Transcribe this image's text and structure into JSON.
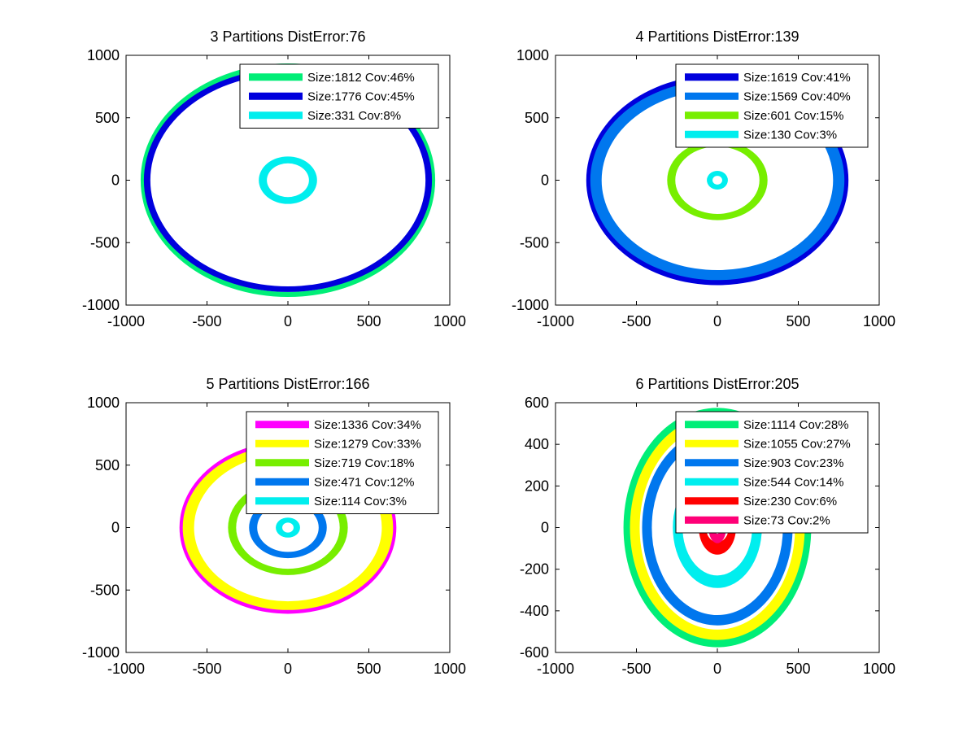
{
  "chart_data": [
    {
      "type": "scatter",
      "title": "3 Partitions DistError:76",
      "xlim": [
        -1000,
        1000
      ],
      "ylim": [
        -1000,
        1000
      ],
      "xticks": [
        "-1000",
        "-500",
        "0",
        "500",
        "1000"
      ],
      "yticks": [
        "1000",
        "500",
        "0",
        "-500",
        "-1000"
      ],
      "legend_location": "top-right",
      "series": [
        {
          "name": "Size:1812 Cov:46%",
          "color": "#00ee77",
          "shape": "ring",
          "rx_outer": 910,
          "rx_inner": 880,
          "ry_outer": 935,
          "ry_inner": 895
        },
        {
          "name": "Size:1776 Cov:45%",
          "color": "#0000dd",
          "shape": "ring",
          "rx_outer": 890,
          "rx_inner": 850,
          "ry_outer": 895,
          "ry_inner": 850
        },
        {
          "name": "Size:331 Cov:8%",
          "color": "#00eeee",
          "shape": "ring",
          "rx_outer": 180,
          "rx_inner": 130,
          "ry_outer": 190,
          "ry_inner": 135
        }
      ]
    },
    {
      "type": "scatter",
      "title": "4 Partitions DistError:139",
      "xlim": [
        -1000,
        1000
      ],
      "ylim": [
        -1000,
        1000
      ],
      "xticks": [
        "-1000",
        "-500",
        "0",
        "500",
        "1000"
      ],
      "yticks": [
        "1000",
        "500",
        "0",
        "-500",
        "-1000"
      ],
      "legend_location": "top-right",
      "series": [
        {
          "name": "Size:1619 Cov:41%",
          "color": "#0000dd",
          "shape": "ring",
          "rx_outer": 810,
          "rx_inner": 775,
          "ry_outer": 840,
          "ry_inner": 780
        },
        {
          "name": "Size:1569 Cov:40%",
          "color": "#0077ee",
          "shape": "ring",
          "rx_outer": 785,
          "rx_inner": 715,
          "ry_outer": 800,
          "ry_inner": 720
        },
        {
          "name": "Size:601 Cov:15%",
          "color": "#77ee00",
          "shape": "ring",
          "rx_outer": 310,
          "rx_inner": 260,
          "ry_outer": 320,
          "ry_inner": 270
        },
        {
          "name": "Size:130 Cov:3%",
          "color": "#00eeee",
          "shape": "ring",
          "rx_outer": 65,
          "rx_inner": 30,
          "ry_outer": 75,
          "ry_inner": 35
        }
      ]
    },
    {
      "type": "scatter",
      "title": "5 Partitions DistError:166",
      "xlim": [
        -1000,
        1000
      ],
      "ylim": [
        -1000,
        1000
      ],
      "xticks": [
        "-1000",
        "-500",
        "0",
        "500",
        "1000"
      ],
      "yticks": [
        "1000",
        "500",
        "0",
        "-500",
        "-1000"
      ],
      "legend_location": "top-right",
      "series": [
        {
          "name": "Size:1336 Cov:34%",
          "color": "#ff00ff",
          "shape": "ring",
          "rx_outer": 670,
          "rx_inner": 640,
          "ry_outer": 690,
          "ry_inner": 655
        },
        {
          "name": "Size:1279 Cov:33%",
          "color": "#ffff00",
          "shape": "ring",
          "rx_outer": 650,
          "rx_inner": 580,
          "ry_outer": 660,
          "ry_inner": 590
        },
        {
          "name": "Size:719 Cov:18%",
          "color": "#77ee00",
          "shape": "ring",
          "rx_outer": 370,
          "rx_inner": 320,
          "ry_outer": 380,
          "ry_inner": 330
        },
        {
          "name": "Size:471 Cov:12%",
          "color": "#0077ee",
          "shape": "ring",
          "rx_outer": 240,
          "rx_inner": 190,
          "ry_outer": 245,
          "ry_inner": 195
        },
        {
          "name": "Size:114 Cov:3%",
          "color": "#00eeee",
          "shape": "ring",
          "rx_outer": 75,
          "rx_inner": 35,
          "ry_outer": 80,
          "ry_inner": 40
        }
      ]
    },
    {
      "type": "scatter",
      "title": "6 Partitions DistError:205",
      "xlim": [
        -1000,
        1000
      ],
      "ylim": [
        -600,
        600
      ],
      "xticks": [
        "-1000",
        "-500",
        "0",
        "500",
        "1000"
      ],
      "yticks": [
        "600",
        "400",
        "200",
        "0",
        "-200",
        "-400",
        "-600"
      ],
      "legend_location": "top-right",
      "series": [
        {
          "name": "Size:1114 Cov:28%",
          "color": "#00ee77",
          "shape": "ring",
          "rx_outer": 580,
          "rx_inner": 530,
          "ry_outer": 575,
          "ry_inner": 535
        },
        {
          "name": "Size:1055 Cov:27%",
          "color": "#ffff00",
          "shape": "ring",
          "rx_outer": 540,
          "rx_inner": 480,
          "ry_outer": 540,
          "ry_inner": 490
        },
        {
          "name": "Size:903 Cov:23%",
          "color": "#0077ee",
          "shape": "ring",
          "rx_outer": 465,
          "rx_inner": 405,
          "ry_outer": 470,
          "ry_inner": 420
        },
        {
          "name": "Size:544 Cov:14%",
          "color": "#00eeee",
          "shape": "ring",
          "rx_outer": 275,
          "rx_inner": 215,
          "ry_outer": 290,
          "ry_inner": 230
        },
        {
          "name": "Size:230 Cov:6%",
          "color": "#ff0000",
          "shape": "ring",
          "rx_outer": 115,
          "rx_inner": 70,
          "ry_outer": 130,
          "ry_inner": 70
        },
        {
          "name": "Size:73 Cov:2%",
          "color": "#ff0077",
          "shape": "ring",
          "rx_outer": 55,
          "rx_inner": 20,
          "ry_outer": 75,
          "ry_inner": 30
        }
      ]
    }
  ]
}
